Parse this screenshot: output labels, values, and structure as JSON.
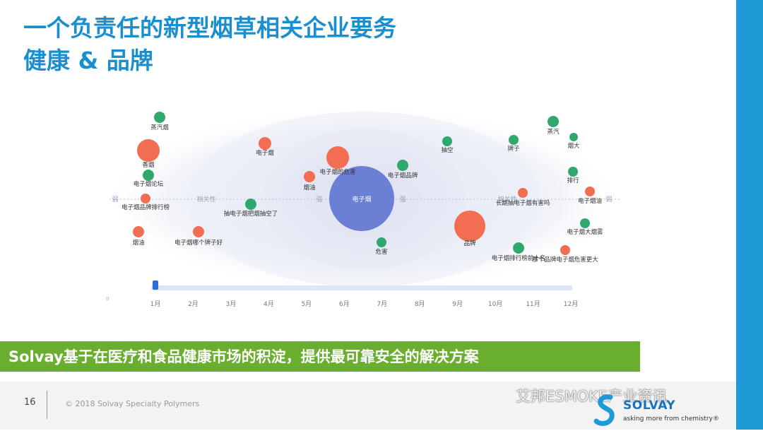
{
  "title_line1": "一个负责任的新型烟草相关企业要务",
  "title_line2": "健康 & 品牌",
  "chart_data": {
    "type": "scatter",
    "center_node": "电子烟",
    "ring_labels": [
      "弱",
      "相关性",
      "强",
      "强",
      "相关性",
      "弱"
    ],
    "nodes": [
      {
        "label": "蒸汽烟",
        "color": "#2fa86e",
        "size": 8
      },
      {
        "label": "香烟",
        "color": "#f36d53",
        "size": 16
      },
      {
        "label": "电子烟论坛",
        "color": "#2fa86e",
        "size": 8
      },
      {
        "label": "电子烟品牌排行榜",
        "color": "#f36d53",
        "size": 7
      },
      {
        "label": "烟油",
        "color": "#f36d53",
        "size": 8
      },
      {
        "label": "电子烟哪个牌子好",
        "color": "#f36d53",
        "size": 8
      },
      {
        "label": "电子烟",
        "color": "#f36d53",
        "size": 9
      },
      {
        "label": "抽电子烟把烟抽空了",
        "color": "#2fa86e",
        "size": 8
      },
      {
        "label": "电子烟的危害",
        "color": "#f36d53",
        "size": 16
      },
      {
        "label": "烟油",
        "color": "#f36d53",
        "size": 8
      },
      {
        "label": "电子烟品牌",
        "color": "#2fa86e",
        "size": 8
      },
      {
        "label": "危害",
        "color": "#2fa86e",
        "size": 7
      },
      {
        "label": "抽空",
        "color": "#2fa86e",
        "size": 7
      },
      {
        "label": "牌子",
        "color": "#2fa86e",
        "size": 7
      },
      {
        "label": "品牌",
        "color": "#f36d53",
        "size": 22
      },
      {
        "label": "蒸汽",
        "color": "#2fa86e",
        "size": 8
      },
      {
        "label": "烟大",
        "color": "#2fa86e",
        "size": 6
      },
      {
        "label": "排行",
        "color": "#2fa86e",
        "size": 7
      },
      {
        "label": "长期抽电子烟有害吗",
        "color": "#f36d53",
        "size": 7
      },
      {
        "label": "电子烟油",
        "color": "#f36d53",
        "size": 7
      },
      {
        "label": "电子烟大烟雾",
        "color": "#2fa86e",
        "size": 7
      },
      {
        "label": "电子烟排行榜前十名",
        "color": "#2fa86e",
        "size": 8
      },
      {
        "label": "那个品牌电子烟危害更大",
        "color": "#f36d53",
        "size": 7
      }
    ],
    "timeline": {
      "months": [
        "1月",
        "2月",
        "3月",
        "4月",
        "5月",
        "6月",
        "7月",
        "8月",
        "9月",
        "10月",
        "11月",
        "12月"
      ],
      "selected": 0
    }
  },
  "banner_text": "Solvay基于在医疗和食品健康市场的积淀，提供最可靠安全的解决方案",
  "footer": {
    "page_number": "16",
    "copyright": "© 2018 Solvay Specialty Polymers"
  },
  "watermark_text": "艾邦ESMOKE产业资讯",
  "logo": {
    "name": "SOLVAY",
    "tagline": "asking more from chemistry®"
  },
  "colors": {
    "title": "#1a8fd0",
    "accent_bar": "#1e9ad6",
    "banner": "#6aae2f",
    "green_node": "#2fa86e",
    "red_node": "#f36d53",
    "center_node": "#6b7fd4"
  }
}
